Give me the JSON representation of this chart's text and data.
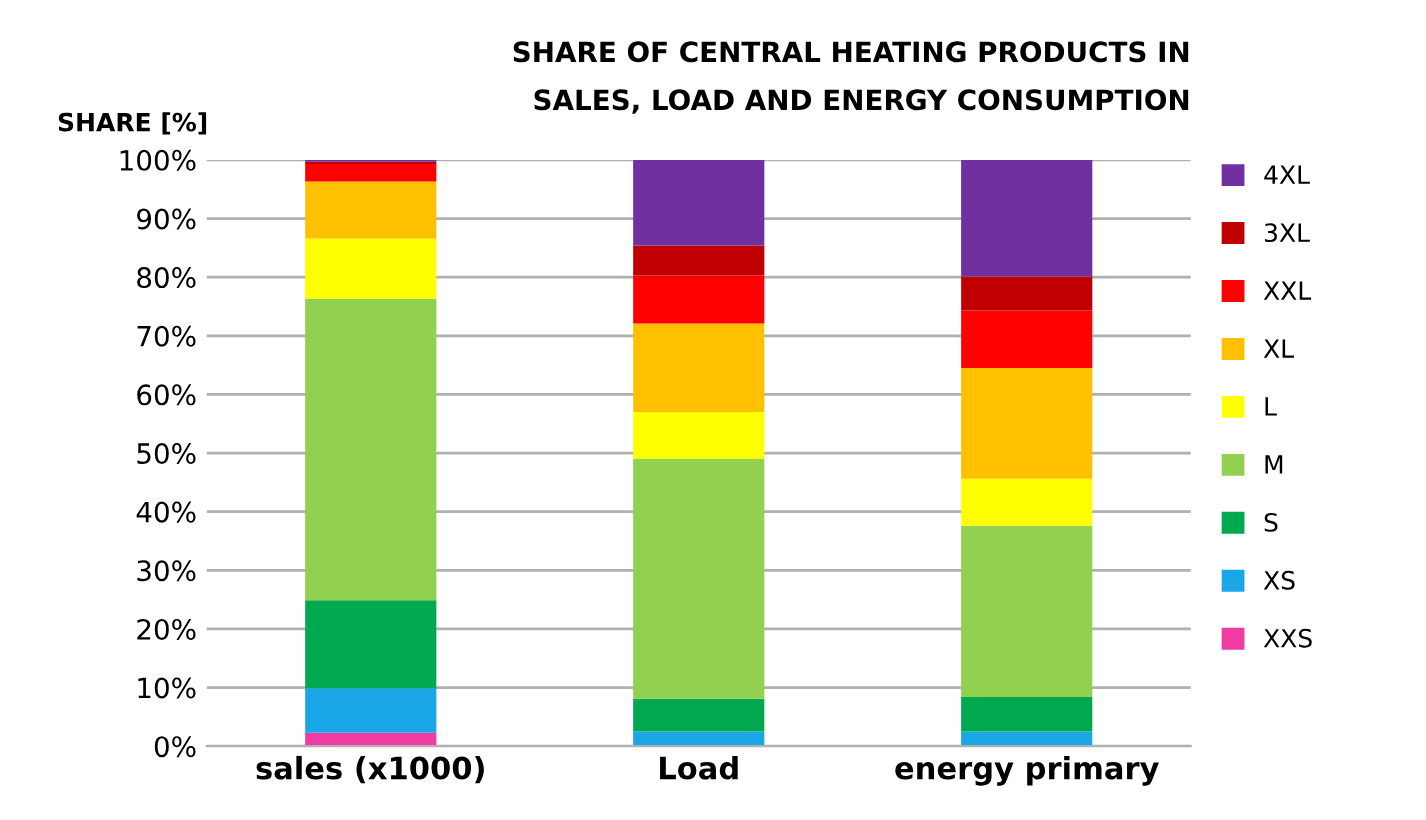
{
  "chart_data": {
    "type": "bar",
    "stacked": true,
    "title": "SHARE OF CENTRAL HEATING PRODUCTS IN\nSALES, LOAD AND ENERGY CONSUMPTION",
    "ylabel": "SHARE [%]",
    "categories": [
      "sales (x1000)",
      "Load",
      "energy primary"
    ],
    "series": [
      {
        "name": "XXS",
        "color": "#f03ca0",
        "values": [
          2.3,
          0,
          0
        ]
      },
      {
        "name": "XS",
        "color": "#1aa7e8",
        "values": [
          7.6,
          2.5,
          2.5
        ]
      },
      {
        "name": "S",
        "color": "#00a850",
        "values": [
          15,
          5.6,
          5.9
        ]
      },
      {
        "name": "M",
        "color": "#92d050",
        "values": [
          51.4,
          40.9,
          29.2
        ]
      },
      {
        "name": "L",
        "color": "#ffff00",
        "values": [
          10.3,
          8,
          8
        ]
      },
      {
        "name": "XL",
        "color": "#ffc000",
        "values": [
          9.7,
          15.1,
          18.9
        ]
      },
      {
        "name": "XXL",
        "color": "#ff0000",
        "values": [
          3,
          8.2,
          9.8
        ]
      },
      {
        "name": "3XL",
        "color": "#c00000",
        "values": [
          0.4,
          5.1,
          5.8
        ]
      },
      {
        "name": "4XL",
        "color": "#7030a0",
        "values": [
          0.3,
          14.6,
          19.9
        ]
      }
    ],
    "ylim": [
      0,
      100
    ],
    "yticks": [
      {
        "value": 0,
        "label": "0%"
      },
      {
        "value": 10,
        "label": "10%"
      },
      {
        "value": 20,
        "label": "20%"
      },
      {
        "value": 30,
        "label": "30%"
      },
      {
        "value": 40,
        "label": "40%"
      },
      {
        "value": 50,
        "label": "50%"
      },
      {
        "value": 60,
        "label": "60%"
      },
      {
        "value": 70,
        "label": "70%"
      },
      {
        "value": 80,
        "label": "80%"
      },
      {
        "value": 90,
        "label": "90%"
      },
      {
        "value": 100,
        "label": "100%"
      }
    ],
    "grid": "y",
    "legend": "right"
  }
}
